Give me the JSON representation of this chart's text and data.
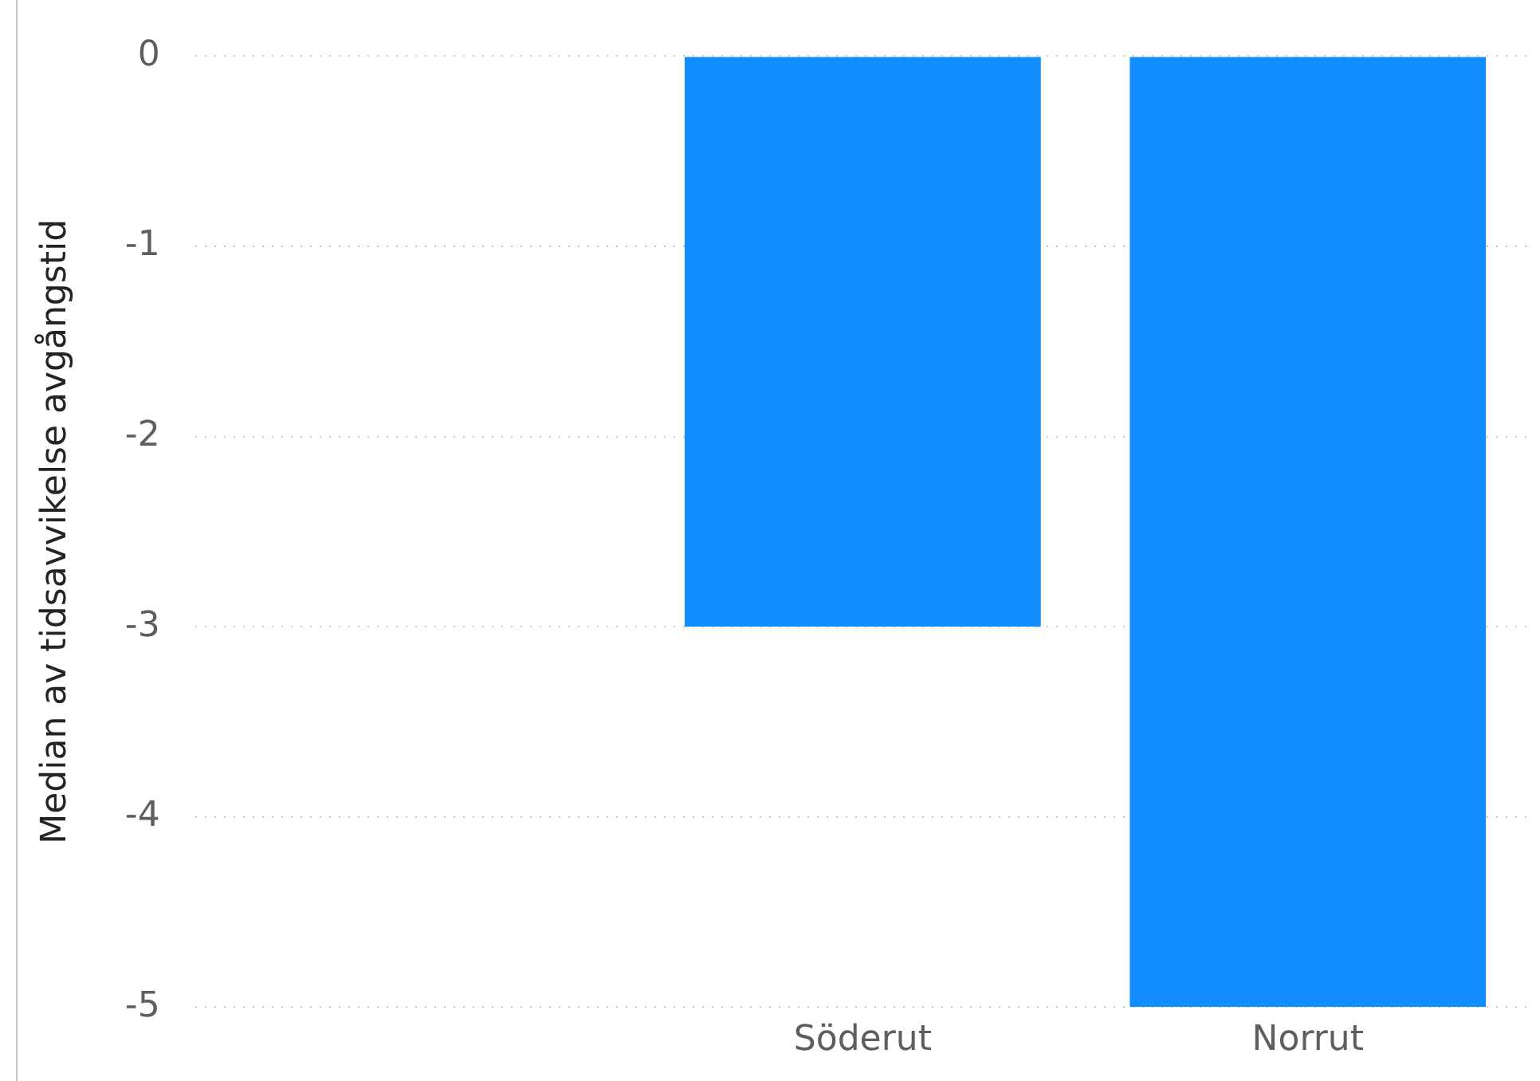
{
  "chart_data": {
    "type": "bar",
    "ylabel": "Median av tidsavvikelse avgångstid",
    "categories": [
      null,
      "Söderut",
      "Norrut"
    ],
    "values": [
      null,
      -3,
      -5
    ],
    "color": "#118dff",
    "ylim": [
      -5,
      0
    ],
    "yticks": [
      -5,
      -4,
      -3,
      -2,
      -1,
      0
    ],
    "grid": "y",
    "legend": false
  }
}
